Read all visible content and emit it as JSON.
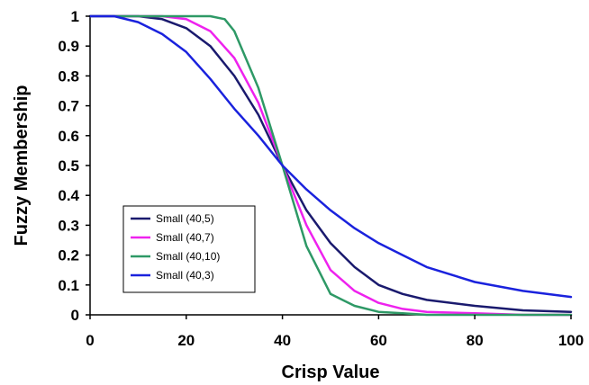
{
  "chart_data": {
    "type": "line",
    "xlabel": "Crisp Value",
    "ylabel": "Fuzzy Membership",
    "xlim": [
      0,
      100
    ],
    "ylim": [
      0,
      1
    ],
    "xticks": [
      "0",
      "20",
      "40",
      "60",
      "80",
      "100"
    ],
    "yticks": [
      "0",
      "0.1",
      "0.2",
      "0.3",
      "0.4",
      "0.5",
      "0.6",
      "0.7",
      "0.8",
      "0.9",
      "1"
    ],
    "grid": false,
    "legend_position": "bottom-left",
    "series": [
      {
        "name": "Small (40,5)",
        "color": "#1a1a6e",
        "x": [
          0,
          10,
          15,
          20,
          25,
          30,
          35,
          40,
          45,
          50,
          55,
          60,
          65,
          70,
          80,
          90,
          100
        ],
        "y": [
          1,
          1,
          0.99,
          0.96,
          0.9,
          0.8,
          0.67,
          0.5,
          0.35,
          0.24,
          0.16,
          0.1,
          0.07,
          0.05,
          0.03,
          0.015,
          0.01
        ]
      },
      {
        "name": "Small (40,7)",
        "color": "#ee22ee",
        "x": [
          0,
          10,
          15,
          20,
          25,
          30,
          35,
          40,
          45,
          50,
          55,
          60,
          65,
          70,
          80,
          90,
          100
        ],
        "y": [
          1,
          1,
          1,
          0.99,
          0.95,
          0.86,
          0.71,
          0.5,
          0.3,
          0.15,
          0.08,
          0.04,
          0.02,
          0.01,
          0.005,
          0,
          0
        ]
      },
      {
        "name": "Small (40,10)",
        "color": "#2e9966",
        "x": [
          0,
          10,
          15,
          20,
          25,
          28,
          30,
          35,
          40,
          45,
          50,
          55,
          60,
          65,
          70,
          80,
          90,
          100
        ],
        "y": [
          1,
          1,
          1,
          1,
          1,
          0.99,
          0.95,
          0.76,
          0.5,
          0.23,
          0.07,
          0.03,
          0.01,
          0.005,
          0,
          0,
          0,
          0
        ]
      },
      {
        "name": "Small (40,3)",
        "color": "#1a22dd",
        "x": [
          0,
          5,
          10,
          15,
          20,
          25,
          30,
          35,
          40,
          45,
          50,
          55,
          60,
          65,
          70,
          80,
          90,
          100
        ],
        "y": [
          1,
          1,
          0.98,
          0.94,
          0.88,
          0.79,
          0.69,
          0.6,
          0.5,
          0.42,
          0.35,
          0.29,
          0.24,
          0.2,
          0.16,
          0.11,
          0.08,
          0.06
        ]
      }
    ]
  }
}
